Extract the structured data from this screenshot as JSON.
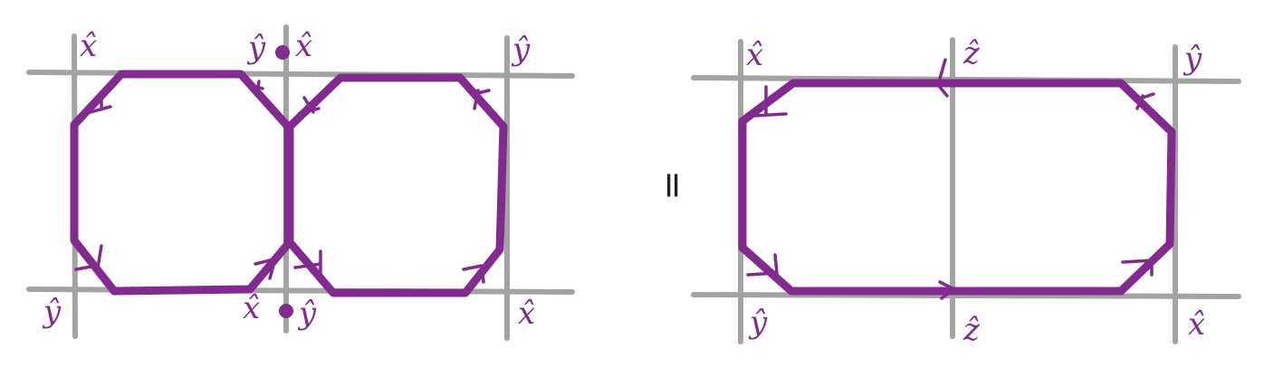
{
  "colors": {
    "grid": "#a3a3a3",
    "loop": "#822a8f",
    "background": "#ffffff"
  },
  "left_diagram": {
    "labels": {
      "top_left": "x̂",
      "top_mid_left": "ŷ",
      "top_mid_right": "x̂",
      "top_right": "ŷ",
      "bottom_left": "ŷ",
      "bottom_mid_left": "x̂",
      "bottom_mid_right": "ŷ",
      "bottom_right": "x̂"
    }
  },
  "equals_sign": "=",
  "right_diagram": {
    "labels": {
      "top_left": "x̂",
      "top_mid": "ẑ",
      "top_right": "ŷ",
      "bottom_left": "ŷ",
      "bottom_mid": "ẑ",
      "bottom_right": "x̂"
    }
  }
}
